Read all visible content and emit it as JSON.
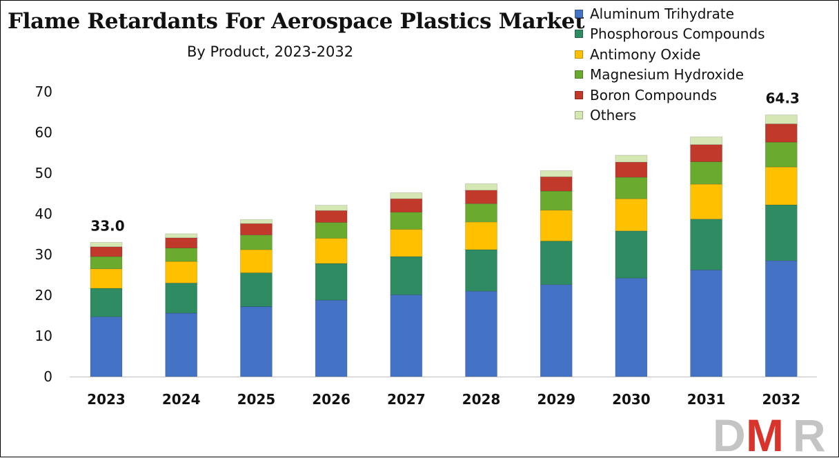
{
  "chart_data": {
    "type": "bar",
    "stacked": true,
    "title": "Flame Retardants For Aerospace Plastics Market",
    "subtitle": "By Product, 2023-2032",
    "categories": [
      "2023",
      "2024",
      "2025",
      "2026",
      "2027",
      "2028",
      "2029",
      "2030",
      "2031",
      "2032"
    ],
    "series": [
      {
        "name": "Aluminum Trihydrate",
        "color": "#4472c4",
        "values": [
          14.7,
          15.6,
          17.2,
          18.8,
          20.1,
          21.0,
          22.6,
          24.2,
          26.2,
          28.5
        ]
      },
      {
        "name": "Phosphorous Compounds",
        "color": "#2e8b62",
        "values": [
          7.0,
          7.4,
          8.3,
          9.0,
          9.4,
          10.2,
          10.7,
          11.6,
          12.5,
          13.7
        ]
      },
      {
        "name": "Antimony Oxide",
        "color": "#ffc000",
        "values": [
          4.8,
          5.3,
          5.7,
          6.2,
          6.7,
          6.8,
          7.6,
          7.9,
          8.6,
          9.3
        ]
      },
      {
        "name": "Magnesium Hydroxide",
        "color": "#6aaa2e",
        "values": [
          3.0,
          3.3,
          3.6,
          3.9,
          4.2,
          4.5,
          4.7,
          5.3,
          5.5,
          6.1
        ]
      },
      {
        "name": "Boron Compounds",
        "color": "#c0392b",
        "values": [
          2.4,
          2.5,
          2.8,
          2.9,
          3.3,
          3.3,
          3.5,
          3.7,
          4.2,
          4.5
        ]
      },
      {
        "name": "Others",
        "color": "#d5e8b4",
        "values": [
          1.1,
          1.0,
          1.0,
          1.3,
          1.5,
          1.6,
          1.5,
          1.7,
          1.9,
          2.2
        ]
      }
    ],
    "data_labels": [
      {
        "category": "2023",
        "text": "33.0"
      },
      {
        "category": "2032",
        "text": "64.3"
      }
    ],
    "ylim": [
      0,
      70
    ],
    "yticks": [
      0,
      10,
      20,
      30,
      40,
      50,
      60,
      70
    ],
    "grid": false,
    "legend_position": "top-right"
  },
  "logo": {
    "text": "DMR"
  }
}
